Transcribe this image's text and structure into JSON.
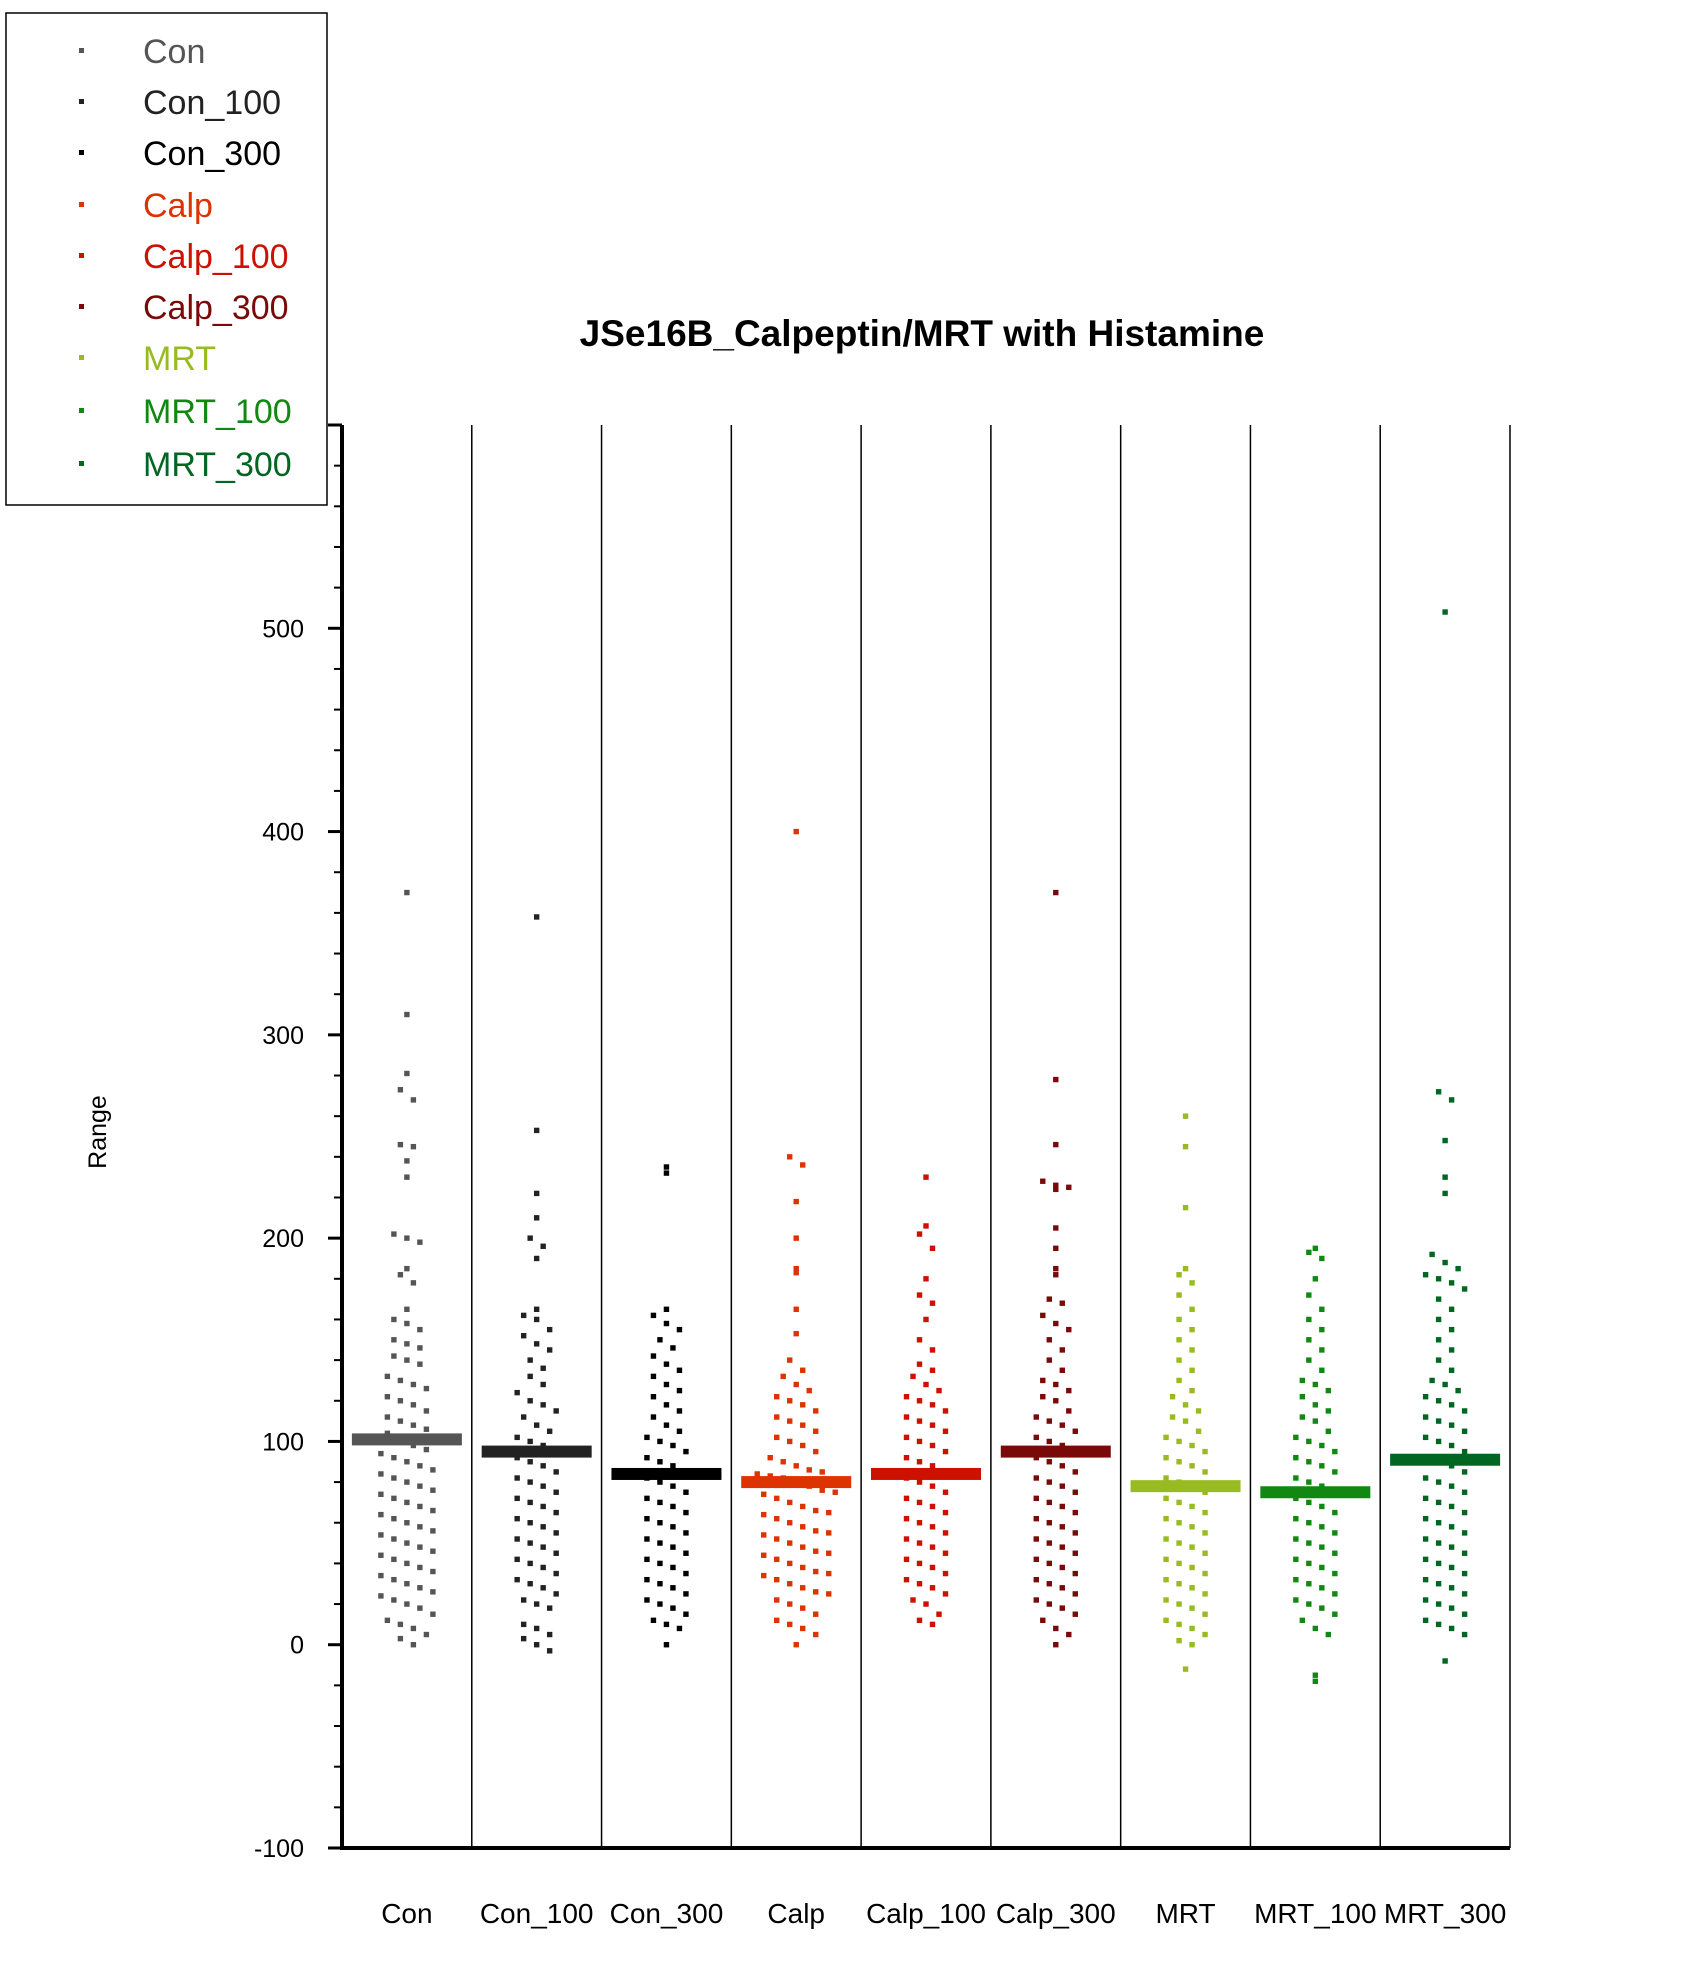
{
  "chart_data": {
    "type": "scatter",
    "title": "JSe16B_Calpeptin/MRT with Histamine",
    "ylabel": "Range",
    "ylim": [
      -100,
      600
    ],
    "y_ticks": [
      -100,
      0,
      100,
      200,
      300,
      400,
      500
    ],
    "legend_position": "top-left",
    "categories": [
      "Con",
      "Con_100",
      "Con_300",
      "Calp",
      "Calp_100",
      "Calp_300",
      "MRT",
      "MRT_100",
      "MRT_300"
    ],
    "series": [
      {
        "name": "Con",
        "color": "#555555",
        "mean": 101,
        "values": [
          370,
          310,
          281,
          273,
          268,
          246,
          245,
          238,
          230,
          202,
          200,
          198,
          185,
          182,
          178,
          165,
          160,
          158,
          155,
          150,
          148,
          146,
          142,
          140,
          138,
          132,
          130,
          128,
          126,
          122,
          120,
          118,
          115,
          112,
          110,
          108,
          106,
          104,
          102,
          98,
          96,
          94,
          92,
          90,
          88,
          86,
          84,
          82,
          80,
          78,
          76,
          74,
          72,
          70,
          68,
          66,
          64,
          62,
          60,
          58,
          56,
          54,
          52,
          50,
          48,
          46,
          44,
          42,
          40,
          38,
          36,
          34,
          32,
          30,
          28,
          26,
          24,
          22,
          20,
          18,
          15,
          12,
          10,
          8,
          5,
          3,
          0
        ]
      },
      {
        "name": "Con_100",
        "color": "#222222",
        "mean": 95,
        "values": [
          358,
          253,
          222,
          210,
          200,
          196,
          190,
          165,
          162,
          160,
          155,
          152,
          148,
          145,
          140,
          136,
          132,
          128,
          124,
          120,
          118,
          115,
          112,
          108,
          105,
          102,
          100,
          98,
          95,
          92,
          90,
          88,
          85,
          82,
          80,
          78,
          75,
          72,
          70,
          68,
          65,
          62,
          60,
          58,
          55,
          52,
          50,
          48,
          45,
          42,
          40,
          38,
          35,
          32,
          30,
          28,
          25,
          22,
          20,
          18,
          10,
          8,
          5,
          3,
          0,
          -3
        ]
      },
      {
        "name": "Con_300",
        "color": "#000000",
        "mean": 84,
        "values": [
          235,
          232,
          165,
          162,
          158,
          155,
          150,
          146,
          142,
          138,
          135,
          132,
          128,
          125,
          122,
          118,
          115,
          112,
          108,
          105,
          102,
          100,
          98,
          95,
          92,
          90,
          88,
          85,
          82,
          80,
          78,
          75,
          72,
          70,
          68,
          65,
          62,
          60,
          58,
          55,
          52,
          50,
          48,
          45,
          42,
          40,
          38,
          35,
          32,
          30,
          28,
          25,
          22,
          20,
          18,
          15,
          12,
          10,
          8,
          0
        ]
      },
      {
        "name": "Calp",
        "color": "#dd3300",
        "mean": 80,
        "values": [
          400,
          240,
          236,
          218,
          200,
          185,
          183,
          165,
          153,
          140,
          135,
          132,
          128,
          125,
          122,
          120,
          118,
          115,
          112,
          110,
          108,
          105,
          102,
          100,
          98,
          95,
          92,
          90,
          88,
          86,
          85,
          84,
          83,
          82,
          80,
          78,
          76,
          75,
          74,
          72,
          70,
          68,
          66,
          65,
          64,
          62,
          60,
          58,
          56,
          55,
          54,
          52,
          50,
          48,
          46,
          45,
          44,
          42,
          40,
          38,
          36,
          35,
          34,
          32,
          30,
          28,
          26,
          25,
          22,
          20,
          18,
          15,
          12,
          10,
          8,
          5,
          0
        ]
      },
      {
        "name": "Calp_100",
        "color": "#cc1100",
        "mean": 84,
        "values": [
          230,
          206,
          202,
          195,
          180,
          172,
          168,
          160,
          150,
          145,
          138,
          135,
          132,
          128,
          125,
          122,
          120,
          118,
          115,
          112,
          110,
          108,
          105,
          102,
          100,
          98,
          95,
          92,
          90,
          88,
          85,
          82,
          80,
          78,
          75,
          72,
          70,
          68,
          65,
          62,
          60,
          58,
          55,
          52,
          50,
          48,
          45,
          42,
          40,
          38,
          35,
          32,
          30,
          28,
          25,
          22,
          20,
          15,
          12,
          10
        ]
      },
      {
        "name": "Calp_300",
        "color": "#7a0a0a",
        "mean": 95,
        "values": [
          370,
          278,
          246,
          228,
          226,
          225,
          224,
          205,
          195,
          185,
          182,
          170,
          168,
          162,
          158,
          155,
          150,
          145,
          140,
          135,
          130,
          128,
          125,
          122,
          120,
          115,
          112,
          110,
          108,
          105,
          102,
          100,
          98,
          95,
          92,
          90,
          88,
          85,
          82,
          80,
          78,
          75,
          72,
          70,
          68,
          65,
          62,
          60,
          58,
          55,
          52,
          50,
          48,
          45,
          42,
          40,
          38,
          35,
          32,
          30,
          28,
          25,
          22,
          20,
          18,
          15,
          12,
          8,
          5,
          0
        ]
      },
      {
        "name": "MRT",
        "color": "#99bb22",
        "mean": 78,
        "values": [
          260,
          245,
          215,
          185,
          182,
          178,
          172,
          165,
          160,
          155,
          150,
          145,
          140,
          135,
          130,
          125,
          122,
          118,
          115,
          112,
          110,
          105,
          102,
          100,
          98,
          95,
          92,
          90,
          88,
          85,
          82,
          80,
          78,
          75,
          72,
          70,
          68,
          65,
          62,
          60,
          58,
          55,
          52,
          50,
          48,
          45,
          42,
          40,
          38,
          35,
          32,
          30,
          28,
          25,
          22,
          20,
          18,
          15,
          12,
          10,
          8,
          5,
          2,
          0,
          -12
        ]
      },
      {
        "name": "MRT_100",
        "color": "#118811",
        "mean": 75,
        "values": [
          195,
          193,
          190,
          180,
          172,
          165,
          160,
          155,
          150,
          145,
          140,
          135,
          130,
          128,
          125,
          122,
          118,
          115,
          112,
          110,
          105,
          102,
          100,
          98,
          95,
          92,
          90,
          88,
          85,
          82,
          80,
          78,
          75,
          72,
          70,
          68,
          65,
          62,
          60,
          58,
          55,
          52,
          50,
          48,
          45,
          42,
          40,
          38,
          35,
          32,
          30,
          28,
          25,
          22,
          20,
          18,
          15,
          12,
          8,
          5,
          -15,
          -18
        ]
      },
      {
        "name": "MRT_300",
        "color": "#006622",
        "mean": 91,
        "values": [
          508,
          272,
          268,
          248,
          230,
          222,
          192,
          188,
          185,
          182,
          180,
          178,
          175,
          170,
          165,
          160,
          155,
          150,
          145,
          140,
          135,
          130,
          128,
          125,
          122,
          120,
          118,
          115,
          112,
          110,
          108,
          105,
          102,
          100,
          98,
          95,
          92,
          90,
          88,
          85,
          82,
          80,
          78,
          75,
          72,
          70,
          68,
          65,
          62,
          60,
          58,
          55,
          52,
          50,
          48,
          45,
          42,
          40,
          38,
          35,
          32,
          30,
          28,
          25,
          22,
          20,
          18,
          15,
          12,
          10,
          8,
          5,
          -8
        ]
      }
    ]
  }
}
